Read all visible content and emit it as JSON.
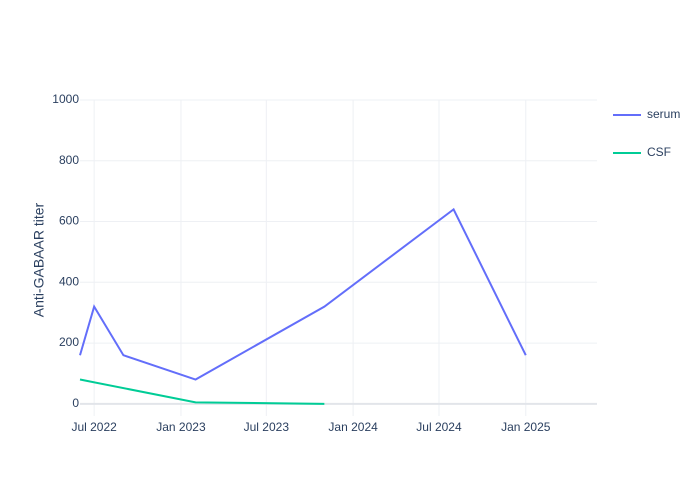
{
  "chart_data": {
    "type": "line",
    "y_label": "Anti-GABAAR titer",
    "series": [
      {
        "name": "serum",
        "color": "#636efa",
        "x": [
          "2022-06",
          "2022-07",
          "2022-09",
          "2023-02",
          "2023-11",
          "2024-08",
          "2025-01"
        ],
        "values": [
          160,
          320,
          160,
          80,
          320,
          640,
          160
        ]
      },
      {
        "name": "CSF",
        "color": "#00cc96",
        "x": [
          "2022-06",
          "2023-02",
          "2023-11"
        ],
        "values": [
          80,
          5,
          0
        ]
      }
    ],
    "xlim": [
      "2022-06",
      "2025-06"
    ],
    "xticks": [
      {
        "value": "2022-07",
        "label": "Jul 2022"
      },
      {
        "value": "2023-01",
        "label": "Jan 2023"
      },
      {
        "value": "2023-07",
        "label": "Jul 2023"
      },
      {
        "value": "2024-01",
        "label": "Jan 2024"
      },
      {
        "value": "2024-07",
        "label": "Jul 2024"
      },
      {
        "value": "2025-01",
        "label": "Jan 2025"
      }
    ],
    "ylim": [
      -40,
      1000
    ],
    "yticks": [
      0,
      200,
      400,
      600,
      800,
      1000
    ],
    "grid": true,
    "legend": "right"
  }
}
